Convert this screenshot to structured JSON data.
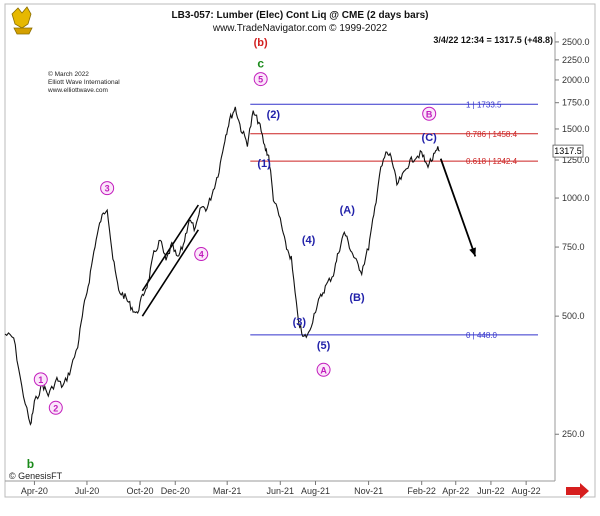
{
  "chart_data": {
    "type": "line",
    "title": "LB3-057: Lumber (Elec) Cont Liq @ CME  (2 days bars)",
    "subtitle": "www.TradeNavigator.com © 1999-2022",
    "quote": "3/4/22 12:34 = 1317.5 (+48.8)",
    "price_tag": "1317.5",
    "copyright": [
      "© March 2022",
      "Elliott Wave International",
      "www.elliottwave.com"
    ],
    "footer": "© GenesisFT",
    "y_scale": "log",
    "ylim": [
      190,
      2650
    ],
    "y_ticks": [
      "2500.0",
      "2250.0",
      "2000.0",
      "1750.0",
      "1500.0",
      "1250.0",
      "1000.0",
      "750.0",
      "500.0",
      "250.0"
    ],
    "y_tick_values": [
      2500,
      2250,
      2000,
      1750,
      1500,
      1250,
      1000,
      750,
      500,
      250
    ],
    "x_ticks": [
      "Apr-20",
      "Jul-20",
      "Oct-20",
      "Dec-20",
      "Mar-21",
      "Jun-21",
      "Aug-21",
      "Nov-21",
      "Feb-22",
      "Apr-22",
      "Jun-22",
      "Aug-22"
    ],
    "x_tick_dates": [
      "2020-04-01",
      "2020-07-01",
      "2020-10-01",
      "2020-12-01",
      "2021-03-01",
      "2021-06-01",
      "2021-08-01",
      "2021-11-01",
      "2022-02-01",
      "2022-04-01",
      "2022-06-01",
      "2022-08-01"
    ],
    "xlim": [
      "2020-02-10",
      "2022-09-20"
    ],
    "price_series": {
      "name": "",
      "x": [
        "2020-02-10",
        "2020-02-25",
        "2020-03-10",
        "2020-03-25",
        "2020-04-01",
        "2020-04-15",
        "2020-04-25",
        "2020-05-10",
        "2020-05-20",
        "2020-06-01",
        "2020-06-15",
        "2020-06-25",
        "2020-07-05",
        "2020-07-15",
        "2020-07-25",
        "2020-08-05",
        "2020-08-15",
        "2020-08-25",
        "2020-09-05",
        "2020-09-15",
        "2020-09-25",
        "2020-10-05",
        "2020-10-15",
        "2020-10-25",
        "2020-11-05",
        "2020-11-15",
        "2020-11-25",
        "2020-12-05",
        "2020-12-15",
        "2020-12-25",
        "2021-01-05",
        "2021-01-15",
        "2021-01-25",
        "2021-02-05",
        "2021-02-15",
        "2021-02-25",
        "2021-03-05",
        "2021-03-15",
        "2021-03-25",
        "2021-04-05",
        "2021-04-15",
        "2021-04-25",
        "2021-05-05",
        "2021-05-12",
        "2021-05-20",
        "2021-06-01",
        "2021-06-10",
        "2021-06-20",
        "2021-07-01",
        "2021-07-10",
        "2021-07-20",
        "2021-08-01",
        "2021-08-10",
        "2021-08-20",
        "2021-09-01",
        "2021-09-10",
        "2021-09-20",
        "2021-10-01",
        "2021-10-10",
        "2021-10-20",
        "2021-11-01",
        "2021-11-10",
        "2021-11-20",
        "2021-12-01",
        "2021-12-10",
        "2021-12-20",
        "2022-01-01",
        "2022-01-10",
        "2022-01-20",
        "2022-02-01",
        "2022-02-10",
        "2022-02-20",
        "2022-03-01",
        "2022-03-04"
      ],
      "y": [
        450,
        440,
        330,
        262,
        300,
        335,
        315,
        345,
        330,
        360,
        420,
        520,
        620,
        760,
        880,
        950,
        700,
        580,
        560,
        530,
        505,
        560,
        610,
        720,
        780,
        690,
        760,
        700,
        760,
        880,
        830,
        950,
        940,
        1050,
        1180,
        1420,
        1580,
        1700,
        1500,
        1380,
        1650,
        1560,
        1350,
        1280,
        1000,
        880,
        760,
        700,
        500,
        440,
        450,
        520,
        560,
        600,
        640,
        730,
        820,
        740,
        690,
        650,
        750,
        900,
        1150,
        1300,
        1280,
        1080,
        1150,
        1230,
        1270,
        1300,
        1210,
        1260,
        1330,
        1317.5
      ]
    },
    "levels": [
      {
        "label": "1 | 1733.5",
        "value": 1733.5,
        "color": "#3333cc"
      },
      {
        "label": "0.786 | 1458.4",
        "value": 1458.4,
        "color": "#cc2222"
      },
      {
        "label": "0.618 | 1242.4",
        "value": 1242.4,
        "color": "#cc2222"
      },
      {
        "label": "0 | 448.0",
        "value": 448.0,
        "color": "#3333cc"
      }
    ],
    "wave_labels": [
      {
        "text": "b",
        "x": "2020-03-25",
        "y": 210,
        "style": "letter",
        "color": "#1a8a1a"
      },
      {
        "text": "1",
        "x": "2020-04-12",
        "y": 345,
        "style": "circle",
        "color": "#c21dbd"
      },
      {
        "text": "2",
        "x": "2020-05-08",
        "y": 292,
        "style": "circle",
        "color": "#c21dbd"
      },
      {
        "text": "3",
        "x": "2020-08-05",
        "y": 1060,
        "style": "circle",
        "color": "#c21dbd"
      },
      {
        "text": "4",
        "x": "2021-01-15",
        "y": 720,
        "style": "circle",
        "color": "#c21dbd"
      },
      {
        "text": "5",
        "x": "2021-04-28",
        "y": 2010,
        "style": "circle",
        "color": "#c21dbd"
      },
      {
        "text": "(b)",
        "x": "2021-04-28",
        "y": 2500,
        "style": "paren",
        "color": "#d22020"
      },
      {
        "text": "c",
        "x": "2021-04-28",
        "y": 2200,
        "style": "letter",
        "color": "#1a8a1a"
      },
      {
        "text": "(1)",
        "x": "2021-05-04",
        "y": 1230,
        "style": "paren",
        "color": "#2222aa"
      },
      {
        "text": "(2)",
        "x": "2021-05-20",
        "y": 1640,
        "style": "paren",
        "color": "#2222aa"
      },
      {
        "text": "(3)",
        "x": "2021-07-04",
        "y": 485,
        "style": "paren",
        "color": "#2222aa"
      },
      {
        "text": "(4)",
        "x": "2021-07-20",
        "y": 785,
        "style": "paren",
        "color": "#2222aa"
      },
      {
        "text": "(5)",
        "x": "2021-08-15",
        "y": 422,
        "style": "paren",
        "color": "#2222aa"
      },
      {
        "text": "A",
        "x": "2021-08-15",
        "y": 365,
        "style": "circle",
        "color": "#c21dbd"
      },
      {
        "text": "(A)",
        "x": "2021-09-25",
        "y": 935,
        "style": "paren",
        "color": "#2222aa"
      },
      {
        "text": "(B)",
        "x": "2021-10-12",
        "y": 560,
        "style": "paren",
        "color": "#2222aa"
      },
      {
        "text": "B",
        "x": "2022-02-14",
        "y": 1640,
        "style": "circle",
        "color": "#c21dbd"
      },
      {
        "text": "(C)",
        "x": "2022-02-14",
        "y": 1430,
        "style": "paren",
        "color": "#2222aa"
      }
    ],
    "channel_lines": [
      {
        "from": {
          "x": "2020-10-05",
          "y": 580
        },
        "to": {
          "x": "2021-01-10",
          "y": 960
        }
      },
      {
        "from": {
          "x": "2020-10-05",
          "y": 500
        },
        "to": {
          "x": "2021-01-10",
          "y": 830
        }
      }
    ],
    "projection_arrow": {
      "from": {
        "x": "2022-03-06",
        "y": 1260
      },
      "to": {
        "x": "2022-05-05",
        "y": 710
      }
    }
  }
}
